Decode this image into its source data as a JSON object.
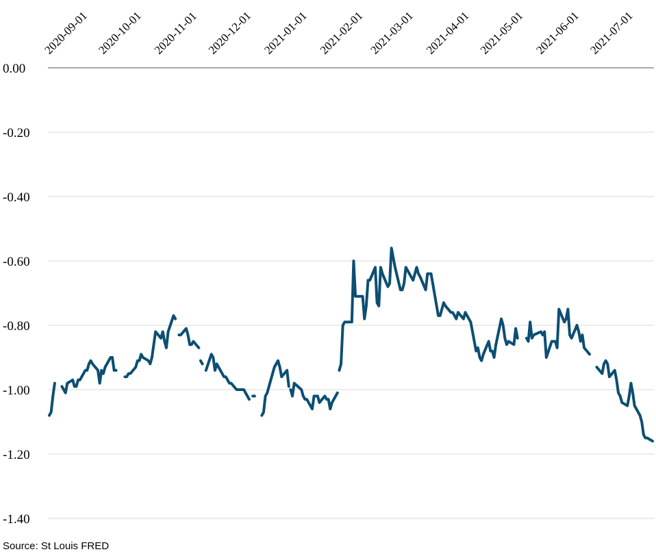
{
  "source_note": "Source: St Louis FRED",
  "colors": {
    "line": "#0d4e73",
    "grid": "#d9d9d9",
    "zero_line": "#8c8c8c"
  },
  "chart_data": {
    "type": "line",
    "title": "",
    "xlabel": "",
    "ylabel": "",
    "ylim": [
      -1.4,
      0.0
    ],
    "y_ticks": [
      0.0,
      -0.2,
      -0.4,
      -0.6,
      -0.8,
      -1.0,
      -1.2,
      -1.4
    ],
    "y_tick_labels": [
      "0.00",
      "-0.20",
      "-0.40",
      "-0.60",
      "-0.80",
      "-1.00",
      "-1.20",
      "-1.40"
    ],
    "x_tick_labels": [
      "2020-09-01",
      "2020-10-01",
      "2020-11-01",
      "2020-12-01",
      "2021-01-01",
      "2021-02-01",
      "2021-03-01",
      "2021-04-01",
      "2021-05-01",
      "2021-06-01",
      "2021-07-01"
    ],
    "x_axis_position": "top",
    "grid": true,
    "legend": "none",
    "series": [
      {
        "segments": [
          [
            [
              "2020-09-01",
              -1.08
            ],
            [
              "2020-09-02",
              -1.07
            ],
            [
              "2020-09-03",
              -1.02
            ],
            [
              "2020-09-04",
              -0.98
            ]
          ],
          [
            [
              "2020-09-08",
              -0.99
            ],
            [
              "2020-09-09",
              -1.0
            ],
            [
              "2020-09-10",
              -1.01
            ],
            [
              "2020-09-11",
              -0.98
            ],
            [
              "2020-09-14",
              -0.97
            ],
            [
              "2020-09-15",
              -0.99
            ],
            [
              "2020-09-16",
              -0.99
            ],
            [
              "2020-09-17",
              -0.97
            ],
            [
              "2020-09-18",
              -0.97
            ],
            [
              "2020-09-21",
              -0.94
            ],
            [
              "2020-09-22",
              -0.94
            ],
            [
              "2020-09-23",
              -0.92
            ],
            [
              "2020-09-24",
              -0.91
            ],
            [
              "2020-09-25",
              -0.92
            ],
            [
              "2020-09-28",
              -0.94
            ],
            [
              "2020-09-29",
              -0.98
            ],
            [
              "2020-09-30",
              -0.94
            ],
            [
              "2020-10-01",
              -0.95
            ],
            [
              "2020-10-02",
              -0.93
            ],
            [
              "2020-10-05",
              -0.9
            ],
            [
              "2020-10-06",
              -0.9
            ],
            [
              "2020-10-07",
              -0.94
            ]
          ],
          [
            [
              "2020-10-08",
              -0.94
            ]
          ],
          [
            [
              "2020-10-13",
              -0.96
            ],
            [
              "2020-10-14",
              -0.96
            ],
            [
              "2020-10-15",
              -0.95
            ],
            [
              "2020-10-16",
              -0.95
            ],
            [
              "2020-10-19",
              -0.93
            ],
            [
              "2020-10-20",
              -0.91
            ],
            [
              "2020-10-21",
              -0.91
            ],
            [
              "2020-10-22",
              -0.89
            ],
            [
              "2020-10-23",
              -0.9
            ],
            [
              "2020-10-26",
              -0.91
            ],
            [
              "2020-10-27",
              -0.92
            ],
            [
              "2020-10-28",
              -0.9
            ],
            [
              "2020-10-29",
              -0.86
            ],
            [
              "2020-10-30",
              -0.82
            ],
            [
              "2020-11-02",
              -0.84
            ],
            [
              "2020-11-03",
              -0.82
            ],
            [
              "2020-11-04",
              -0.85
            ],
            [
              "2020-11-05",
              -0.87
            ],
            [
              "2020-11-06",
              -0.82
            ],
            [
              "2020-11-09",
              -0.77
            ],
            [
              "2020-11-10",
              -0.78
            ]
          ],
          [
            [
              "2020-11-12",
              -0.83
            ],
            [
              "2020-11-13",
              -0.83
            ],
            [
              "2020-11-16",
              -0.81
            ],
            [
              "2020-11-17",
              -0.83
            ],
            [
              "2020-11-18",
              -0.86
            ],
            [
              "2020-11-19",
              -0.86
            ],
            [
              "2020-11-20",
              -0.85
            ],
            [
              "2020-11-23",
              -0.87
            ]
          ],
          [
            [
              "2020-11-24",
              -0.91
            ],
            [
              "2020-11-25",
              -0.92
            ]
          ],
          [
            [
              "2020-11-27",
              -0.94
            ],
            [
              "2020-11-30",
              -0.89
            ],
            [
              "2020-12-01",
              -0.9
            ],
            [
              "2020-12-02",
              -0.94
            ],
            [
              "2020-12-03",
              -0.92
            ],
            [
              "2020-12-04",
              -0.93
            ],
            [
              "2020-12-07",
              -0.96
            ],
            [
              "2020-12-08",
              -0.96
            ],
            [
              "2020-12-09",
              -0.97
            ],
            [
              "2020-12-10",
              -0.98
            ],
            [
              "2020-12-11",
              -0.98
            ],
            [
              "2020-12-14",
              -1.0
            ],
            [
              "2020-12-15",
              -1.0
            ],
            [
              "2020-12-16",
              -1.0
            ],
            [
              "2020-12-17",
              -1.0
            ],
            [
              "2020-12-18",
              -1.0
            ],
            [
              "2020-12-21",
              -1.03
            ]
          ],
          [
            [
              "2020-12-23",
              -1.02
            ],
            [
              "2020-12-24",
              -1.02
            ]
          ],
          [
            [
              "2020-12-28",
              -1.08
            ],
            [
              "2020-12-29",
              -1.07
            ],
            [
              "2020-12-30",
              -1.02
            ],
            [
              "2020-12-31",
              -1.01
            ],
            [
              "2021-01-04",
              -0.93
            ],
            [
              "2021-01-05",
              -0.92
            ],
            [
              "2021-01-06",
              -0.91
            ],
            [
              "2021-01-07",
              -0.93
            ],
            [
              "2021-01-08",
              -0.96
            ],
            [
              "2021-01-11",
              -0.94
            ],
            [
              "2021-01-12",
              -0.99
            ]
          ],
          [
            [
              "2021-01-13",
              -1.0
            ],
            [
              "2021-01-14",
              -1.02
            ],
            [
              "2021-01-15",
              -0.98
            ],
            [
              "2021-01-19",
              -1.0
            ],
            [
              "2021-01-20",
              -1.02
            ],
            [
              "2021-01-21",
              -1.03
            ],
            [
              "2021-01-22",
              -1.03
            ],
            [
              "2021-01-25",
              -1.06
            ],
            [
              "2021-01-26",
              -1.02
            ],
            [
              "2021-01-27",
              -1.02
            ],
            [
              "2021-01-28",
              -1.02
            ],
            [
              "2021-01-29",
              -1.04
            ],
            [
              "2021-02-01",
              -1.02
            ],
            [
              "2021-02-02",
              -1.03
            ],
            [
              "2021-02-03",
              -1.03
            ],
            [
              "2021-02-04",
              -1.06
            ],
            [
              "2021-02-05",
              -1.04
            ],
            [
              "2021-02-08",
              -1.01
            ]
          ],
          [
            [
              "2021-02-09",
              -0.94
            ],
            [
              "2021-02-10",
              -0.92
            ],
            [
              "2021-02-11",
              -0.8
            ],
            [
              "2021-02-12",
              -0.79
            ],
            [
              "2021-02-16",
              -0.79
            ],
            [
              "2021-02-17",
              -0.6
            ],
            [
              "2021-02-18",
              -0.71
            ],
            [
              "2021-02-19",
              -0.71
            ],
            [
              "2021-02-22",
              -0.71
            ],
            [
              "2021-02-23",
              -0.78
            ],
            [
              "2021-02-24",
              -0.74
            ],
            [
              "2021-02-25",
              -0.66
            ],
            [
              "2021-02-26",
              -0.66
            ],
            [
              "2021-03-01",
              -0.62
            ],
            [
              "2021-03-02",
              -0.73
            ],
            [
              "2021-03-03",
              -0.74
            ],
            [
              "2021-03-04",
              -0.62
            ],
            [
              "2021-03-05",
              -0.64
            ],
            [
              "2021-03-08",
              -0.68
            ],
            [
              "2021-03-09",
              -0.67
            ],
            [
              "2021-03-10",
              -0.56
            ],
            [
              "2021-03-11",
              -0.59
            ],
            [
              "2021-03-12",
              -0.62
            ],
            [
              "2021-03-15",
              -0.69
            ],
            [
              "2021-03-16",
              -0.69
            ],
            [
              "2021-03-17",
              -0.67
            ],
            [
              "2021-03-18",
              -0.62
            ],
            [
              "2021-03-19",
              -0.63
            ],
            [
              "2021-03-22",
              -0.66
            ],
            [
              "2021-03-23",
              -0.64
            ],
            [
              "2021-03-24",
              -0.62
            ],
            [
              "2021-03-25",
              -0.64
            ],
            [
              "2021-03-26",
              -0.65
            ],
            [
              "2021-03-29",
              -0.69
            ],
            [
              "2021-03-30",
              -0.64
            ],
            [
              "2021-03-31",
              -0.64
            ],
            [
              "2021-04-01",
              -0.64
            ],
            [
              "2021-04-05",
              -0.77
            ],
            [
              "2021-04-06",
              -0.77
            ],
            [
              "2021-04-07",
              -0.75
            ],
            [
              "2021-04-08",
              -0.73
            ],
            [
              "2021-04-09",
              -0.74
            ],
            [
              "2021-04-12",
              -0.76
            ],
            [
              "2021-04-13",
              -0.76
            ],
            [
              "2021-04-14",
              -0.77
            ],
            [
              "2021-04-15",
              -0.78
            ],
            [
              "2021-04-16",
              -0.76
            ],
            [
              "2021-04-19",
              -0.78
            ],
            [
              "2021-04-20",
              -0.76
            ],
            [
              "2021-04-21",
              -0.77
            ],
            [
              "2021-04-22",
              -0.78
            ],
            [
              "2021-04-23",
              -0.79
            ],
            [
              "2021-04-26",
              -0.88
            ],
            [
              "2021-04-27",
              -0.87
            ],
            [
              "2021-04-28",
              -0.9
            ],
            [
              "2021-04-29",
              -0.91
            ],
            [
              "2021-04-30",
              -0.89
            ],
            [
              "2021-05-03",
              -0.85
            ],
            [
              "2021-05-04",
              -0.88
            ],
            [
              "2021-05-05",
              -0.88
            ],
            [
              "2021-05-06",
              -0.9
            ],
            [
              "2021-05-07",
              -0.86
            ],
            [
              "2021-05-10",
              -0.78
            ],
            [
              "2021-05-11",
              -0.8
            ],
            [
              "2021-05-12",
              -0.84
            ],
            [
              "2021-05-13",
              -0.86
            ],
            [
              "2021-05-14",
              -0.85
            ],
            [
              "2021-05-17",
              -0.86
            ],
            [
              "2021-05-18",
              -0.81
            ],
            [
              "2021-05-19",
              -0.84
            ]
          ],
          [
            [
              "2021-05-24",
              -0.84
            ],
            [
              "2021-05-25",
              -0.85
            ],
            [
              "2021-05-26",
              -0.79
            ],
            [
              "2021-05-27",
              -0.84
            ],
            [
              "2021-05-28",
              -0.83
            ],
            [
              "2021-06-01",
              -0.82
            ],
            [
              "2021-06-02",
              -0.83
            ],
            [
              "2021-06-03",
              -0.82
            ],
            [
              "2021-06-04",
              -0.9
            ],
            [
              "2021-06-07",
              -0.85
            ],
            [
              "2021-06-08",
              -0.85
            ],
            [
              "2021-06-09",
              -0.85
            ],
            [
              "2021-06-10",
              -0.87
            ],
            [
              "2021-06-11",
              -0.75
            ],
            [
              "2021-06-14",
              -0.79
            ],
            [
              "2021-06-15",
              -0.78
            ],
            [
              "2021-06-16",
              -0.75
            ],
            [
              "2021-06-17",
              -0.83
            ],
            [
              "2021-06-18",
              -0.84
            ],
            [
              "2021-06-21",
              -0.8
            ],
            [
              "2021-06-22",
              -0.82
            ],
            [
              "2021-06-23",
              -0.85
            ],
            [
              "2021-06-24",
              -0.83
            ],
            [
              "2021-06-25",
              -0.87
            ],
            [
              "2021-06-28",
              -0.89
            ]
          ],
          [
            [
              "2021-07-02",
              -0.93
            ],
            [
              "2021-07-05",
              -0.95
            ],
            [
              "2021-07-06",
              -0.92
            ],
            [
              "2021-07-07",
              -0.91
            ],
            [
              "2021-07-08",
              -0.92
            ],
            [
              "2021-07-09",
              -0.96
            ],
            [
              "2021-07-12",
              -0.94
            ],
            [
              "2021-07-13",
              -0.97
            ],
            [
              "2021-07-14",
              -1.01
            ],
            [
              "2021-07-15",
              -1.02
            ],
            [
              "2021-07-16",
              -1.04
            ],
            [
              "2021-07-19",
              -1.05
            ],
            [
              "2021-07-20",
              -1.02
            ],
            [
              "2021-07-21",
              -0.98
            ],
            [
              "2021-07-22",
              -1.01
            ],
            [
              "2021-07-23",
              -1.05
            ],
            [
              "2021-07-26",
              -1.08
            ],
            [
              "2021-07-27",
              -1.1
            ],
            [
              "2021-07-28",
              -1.14
            ],
            [
              "2021-07-29",
              -1.15
            ],
            [
              "2021-07-30",
              -1.15
            ],
            [
              "2021-08-02",
              -1.16
            ]
          ]
        ]
      }
    ]
  }
}
